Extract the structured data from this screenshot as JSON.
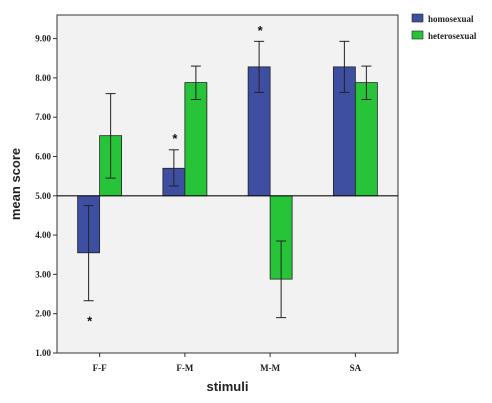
{
  "chart_data": {
    "type": "bar",
    "title": "",
    "xlabel": "stimuli",
    "ylabel": "mean score",
    "categories": [
      "F-F",
      "F-M",
      "M-M",
      "SA"
    ],
    "baseline": 5.0,
    "ylim": [
      1.0,
      9.6
    ],
    "yticks": [
      "1.00",
      "2.00",
      "3.00",
      "4.00",
      "5.00",
      "6.00",
      "7.00",
      "8.00",
      "9.00"
    ],
    "series": [
      {
        "name": "homosexual",
        "color": "#3e4ea0",
        "values": [
          3.55,
          5.7,
          8.28,
          8.28
        ],
        "err_low": [
          2.33,
          5.25,
          7.63,
          7.63
        ],
        "err_high": [
          4.75,
          6.17,
          8.93,
          8.93
        ]
      },
      {
        "name": "heterosexual",
        "color": "#27c43a",
        "values": [
          6.53,
          7.88,
          2.88,
          7.88
        ],
        "err_low": [
          5.45,
          7.45,
          1.9,
          7.45
        ],
        "err_high": [
          7.6,
          8.3,
          3.85,
          8.3
        ]
      }
    ],
    "annotations": [
      {
        "text": "*",
        "category": "F-F",
        "series": "homosexual",
        "y": 1.85
      },
      {
        "text": "*",
        "category": "F-M",
        "series": "homosexual",
        "y": 6.5
      },
      {
        "text": "*",
        "category": "M-M",
        "series": "homosexual",
        "y": 9.25
      }
    ],
    "legend_position": "top-right",
    "grid": false
  }
}
